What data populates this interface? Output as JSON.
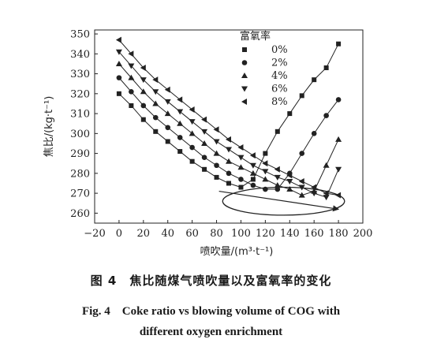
{
  "chart_data": {
    "type": "line",
    "xlabel": "喷吹量/(m³·t⁻¹)",
    "ylabel": "焦比/(kg·t⁻¹)",
    "xlim": [
      -20,
      200
    ],
    "ylim": [
      255,
      352
    ],
    "xticks": [
      -20,
      0,
      20,
      40,
      60,
      80,
      100,
      120,
      140,
      160,
      180,
      200
    ],
    "yticks": [
      260,
      270,
      280,
      290,
      300,
      310,
      320,
      330,
      340,
      350
    ],
    "legend_title": "富氧率",
    "legend_position": "top-right",
    "grid": false,
    "series": [
      {
        "name": "0%",
        "marker": "square",
        "x": [
          0,
          10,
          20,
          30,
          40,
          50,
          60,
          70,
          80,
          90,
          100,
          110,
          120,
          130,
          140,
          150,
          160,
          170,
          180
        ],
        "y": [
          320,
          314,
          307,
          301,
          296,
          291,
          286,
          282,
          278,
          275,
          273,
          277,
          290,
          301,
          310,
          319,
          327,
          333,
          345
        ]
      },
      {
        "name": "2%",
        "marker": "circle",
        "x": [
          0,
          10,
          20,
          30,
          40,
          50,
          60,
          70,
          80,
          90,
          100,
          110,
          120,
          130,
          140,
          150,
          160,
          170,
          180
        ],
        "y": [
          328,
          321,
          314,
          308,
          303,
          298,
          293,
          288,
          284,
          280,
          277,
          274,
          272,
          272,
          280,
          290,
          300,
          309,
          317
        ]
      },
      {
        "name": "4%",
        "marker": "triangle-up",
        "x": [
          0,
          10,
          20,
          30,
          40,
          50,
          60,
          70,
          80,
          90,
          100,
          110,
          120,
          130,
          140,
          150,
          160,
          170,
          180
        ],
        "y": [
          335,
          328,
          321,
          315,
          310,
          305,
          300,
          295,
          290,
          286,
          283,
          280,
          277,
          274,
          272,
          269,
          271,
          284,
          297
        ]
      },
      {
        "name": "6%",
        "marker": "triangle-down",
        "x": [
          0,
          10,
          20,
          30,
          40,
          50,
          60,
          70,
          80,
          90,
          100,
          110,
          120,
          130,
          140,
          150,
          160,
          170,
          180
        ],
        "y": [
          341,
          334,
          327,
          321,
          316,
          311,
          306,
          301,
          296,
          292,
          288,
          284,
          281,
          278,
          276,
          273,
          270,
          268,
          282
        ]
      },
      {
        "name": "8%",
        "marker": "triangle-left",
        "x": [
          0,
          10,
          20,
          30,
          40,
          50,
          60,
          70,
          80,
          90,
          100,
          110,
          120,
          130,
          140,
          150,
          160,
          170,
          180
        ],
        "y": [
          347,
          340,
          333,
          327,
          322,
          317,
          312,
          307,
          302,
          297,
          293,
          289,
          285,
          282,
          279,
          276,
          273,
          270,
          269
        ]
      }
    ],
    "annotations": [
      {
        "type": "ellipse",
        "cx": 135,
        "cy": 266,
        "rx": 50,
        "ry": 7
      },
      {
        "type": "arrow",
        "from": [
          82,
          271
        ],
        "to": [
          180,
          262
        ]
      }
    ]
  },
  "caption": {
    "chinese": "图 4　焦比随煤气喷吹量以及富氧率的变化",
    "english_line1": "Fig. 4　Coke ratio vs blowing volume of COG with",
    "english_line2": "different oxygen enrichment"
  }
}
